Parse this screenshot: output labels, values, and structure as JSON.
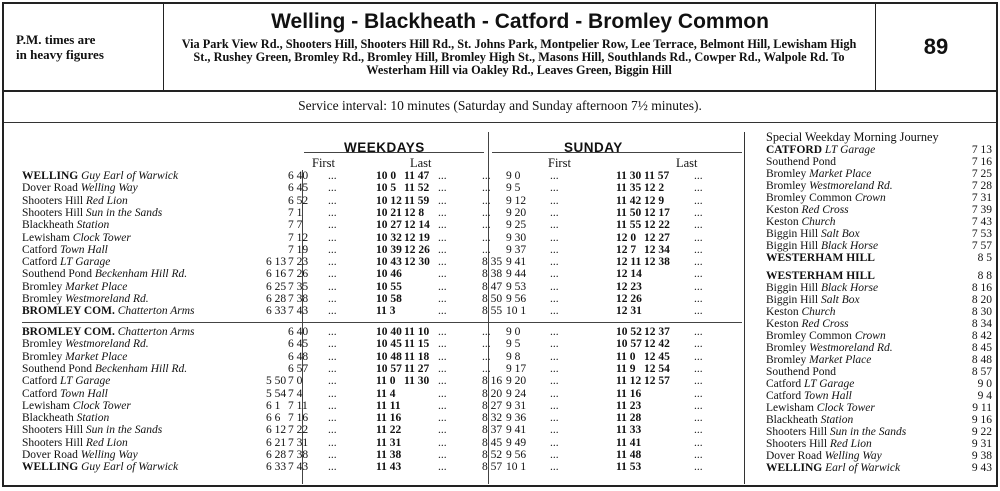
{
  "header": {
    "pm_note_line1": "P.M. times are",
    "pm_note_line2": "in heavy figures",
    "route_title": "Welling - Blackheath - Catford - Bromley Common",
    "route_via": "Via Park View Rd., Shooters Hill, Shooters Hill Rd., St. Johns Park, Montpelier Row, Lee Terrace, Belmont Hill, Lewisham High St., Rushey Green, Bromley Rd., Bromley Hill, Bromley High St., Masons Hill, Southlands Rd., Cowper Rd., Walpole Rd. To Westerham Hill via Oakley Rd., Leaves Green, Biggin Hill",
    "route_number": "89"
  },
  "service_interval": "Service interval: 10 minutes (Saturday and Sunday afternoon 7½ minutes).",
  "weekdays": {
    "label": "WEEKDAYS",
    "first": "First",
    "last": "Last"
  },
  "sunday": {
    "label": "SUNDAY",
    "first": "First",
    "last": "Last"
  },
  "outbound": [
    {
      "stop": "WELLING",
      "detail": "Guy Earl of Warwick",
      "b": true,
      "wd": [
        "",
        "6 40",
        "...",
        "10 0",
        "11 47",
        "..."
      ],
      "su": [
        "...",
        "9 0",
        "...",
        "11 30",
        "11 57",
        "..."
      ]
    },
    {
      "stop": "Dover Road",
      "detail": "Welling Way",
      "b": false,
      "wd": [
        "",
        "6 45",
        "...",
        "10 5",
        "11 52",
        "..."
      ],
      "su": [
        "...",
        "9 5",
        "...",
        "11 35",
        "12 2",
        "..."
      ]
    },
    {
      "stop": "Shooters Hill",
      "detail": "Red Lion",
      "b": false,
      "wd": [
        "",
        "6 52",
        "...",
        "10 12",
        "11 59",
        "..."
      ],
      "su": [
        "...",
        "9 12",
        "...",
        "11 42",
        "12 9",
        "..."
      ]
    },
    {
      "stop": "Shooters Hill",
      "detail": "Sun in the Sands",
      "b": false,
      "wd": [
        "",
        "7 1",
        "...",
        "10 21",
        "12 8",
        "..."
      ],
      "su": [
        "...",
        "9 20",
        "...",
        "11 50",
        "12 17",
        "..."
      ]
    },
    {
      "stop": "Blackheath",
      "detail": "Station",
      "b": false,
      "wd": [
        "",
        "7 7",
        "...",
        "10 27",
        "12 14",
        "..."
      ],
      "su": [
        "...",
        "9 25",
        "...",
        "11 55",
        "12 22",
        "..."
      ]
    },
    {
      "stop": "Lewisham",
      "detail": "Clock Tower",
      "b": false,
      "wd": [
        "",
        "7 12",
        "...",
        "10 32",
        "12 19",
        "..."
      ],
      "su": [
        "...",
        "9 30",
        "...",
        "12 0",
        "12 27",
        "..."
      ]
    },
    {
      "stop": "Catford",
      "detail": "Town Hall",
      "b": false,
      "wd": [
        "",
        "7 19",
        "...",
        "10 39",
        "12 26",
        "..."
      ],
      "su": [
        "...",
        "9 37",
        "...",
        "12 7",
        "12 34",
        "..."
      ]
    },
    {
      "stop": "Catford",
      "detail": "LT Garage",
      "b": false,
      "wd": [
        "6 13",
        "7 23",
        "...",
        "10 43",
        "12 30",
        "..."
      ],
      "su": [
        "8 35",
        "9 41",
        "...",
        "12 11",
        "12 38",
        "..."
      ]
    },
    {
      "stop": "Southend Pond",
      "detail": "Beckenham Hill Rd.",
      "b": false,
      "wd": [
        "6 16",
        "7 26",
        "...",
        "10 46",
        "",
        "..."
      ],
      "su": [
        "8 38",
        "9 44",
        "...",
        "12 14",
        "",
        "..."
      ]
    },
    {
      "stop": "Bromley",
      "detail": "Market Place",
      "b": false,
      "wd": [
        "6 25",
        "7 35",
        "...",
        "10 55",
        "",
        "..."
      ],
      "su": [
        "8 47",
        "9 53",
        "...",
        "12 23",
        "",
        "..."
      ]
    },
    {
      "stop": "Bromley",
      "detail": "Westmoreland Rd.",
      "b": false,
      "wd": [
        "6 28",
        "7 38",
        "...",
        "10 58",
        "",
        "..."
      ],
      "su": [
        "8 50",
        "9 56",
        "...",
        "12 26",
        "",
        "..."
      ]
    },
    {
      "stop": "BROMLEY COM.",
      "detail": "Chatterton Arms",
      "b": true,
      "wd": [
        "6 33",
        "7 43",
        "...",
        "11 3",
        "",
        "..."
      ],
      "su": [
        "8 55",
        "10 1",
        "...",
        "12 31",
        "",
        "..."
      ]
    }
  ],
  "inbound": [
    {
      "stop": "BROMLEY COM.",
      "detail": "Chatterton Arms",
      "b": true,
      "wd": [
        "",
        "6 40",
        "...",
        "10 40",
        "11 10",
        "..."
      ],
      "su": [
        "...",
        "9 0",
        "...",
        "10 52",
        "12 37",
        "..."
      ]
    },
    {
      "stop": "Bromley",
      "detail": "Westmoreland Rd.",
      "b": false,
      "wd": [
        "",
        "6 45",
        "...",
        "10 45",
        "11 15",
        "..."
      ],
      "su": [
        "...",
        "9 5",
        "...",
        "10 57",
        "12 42",
        "..."
      ]
    },
    {
      "stop": "Bromley",
      "detail": "Market Place",
      "b": false,
      "wd": [
        "",
        "6 48",
        "...",
        "10 48",
        "11 18",
        "..."
      ],
      "su": [
        "...",
        "9 8",
        "...",
        "11 0",
        "12 45",
        "..."
      ]
    },
    {
      "stop": "Southend Pond",
      "detail": "Beckenham Hill Rd.",
      "b": false,
      "wd": [
        "",
        "6 57",
        "...",
        "10 57",
        "11 27",
        "..."
      ],
      "su": [
        "...",
        "9 17",
        "...",
        "11 9",
        "12 54",
        "..."
      ]
    },
    {
      "stop": "Catford",
      "detail": "LT Garage",
      "b": false,
      "wd": [
        "5 50",
        "7 0",
        "...",
        "11 0",
        "11 30",
        "..."
      ],
      "su": [
        "8 16",
        "9 20",
        "...",
        "11 12",
        "12 57",
        "..."
      ]
    },
    {
      "stop": "Catford",
      "detail": "Town Hall",
      "b": false,
      "wd": [
        "5 54",
        "7 4",
        "...",
        "11 4",
        "",
        "..."
      ],
      "su": [
        "8 20",
        "9 24",
        "...",
        "11 16",
        "",
        "..."
      ]
    },
    {
      "stop": "Lewisham",
      "detail": "Clock Tower",
      "b": false,
      "wd": [
        "6 1",
        "7 11",
        "...",
        "11 11",
        "",
        "..."
      ],
      "su": [
        "8 27",
        "9 31",
        "...",
        "11 23",
        "",
        "..."
      ]
    },
    {
      "stop": "Blackheath",
      "detail": "Station",
      "b": false,
      "wd": [
        "6 6",
        "7 16",
        "...",
        "11 16",
        "",
        "..."
      ],
      "su": [
        "8 32",
        "9 36",
        "...",
        "11 28",
        "",
        "..."
      ]
    },
    {
      "stop": "Shooters Hill",
      "detail": "Sun in the Sands",
      "b": false,
      "wd": [
        "6 12",
        "7 22",
        "...",
        "11 22",
        "",
        "..."
      ],
      "su": [
        "8 37",
        "9 41",
        "...",
        "11 33",
        "",
        "..."
      ]
    },
    {
      "stop": "Shooters Hill",
      "detail": "Red Lion",
      "b": false,
      "wd": [
        "6 21",
        "7 31",
        "...",
        "11 31",
        "",
        "..."
      ],
      "su": [
        "8 45",
        "9 49",
        "...",
        "11 41",
        "",
        "..."
      ]
    },
    {
      "stop": "Dover Road",
      "detail": "Welling Way",
      "b": false,
      "wd": [
        "6 28",
        "7 38",
        "...",
        "11 38",
        "",
        "..."
      ],
      "su": [
        "8 52",
        "9 56",
        "...",
        "11 48",
        "",
        "..."
      ]
    },
    {
      "stop": "WELLING",
      "detail": "Guy Earl of Warwick",
      "b": true,
      "wd": [
        "6 33",
        "7 43",
        "...",
        "11 43",
        "",
        "..."
      ],
      "su": [
        "8 57",
        "10 1",
        "...",
        "11 53",
        "",
        "..."
      ]
    }
  ],
  "special": {
    "title": "Special Weekday Morning Journey",
    "rows": [
      {
        "stop": "CATFORD",
        "detail": "LT Garage",
        "b": true,
        "time": "7 13"
      },
      {
        "stop": "Southend Pond",
        "detail": "",
        "b": false,
        "time": "7 16"
      },
      {
        "stop": "Bromley",
        "detail": "Market Place",
        "b": false,
        "time": "7 25"
      },
      {
        "stop": "Bromley",
        "detail": "Westmoreland Rd.",
        "b": false,
        "time": "7 28"
      },
      {
        "stop": "Bromley Common",
        "detail": "Crown",
        "b": false,
        "time": "7 31"
      },
      {
        "stop": "Keston",
        "detail": "Red Cross",
        "b": false,
        "time": "7 39"
      },
      {
        "stop": "Keston",
        "detail": "Church",
        "b": false,
        "time": "7 43"
      },
      {
        "stop": "Biggin Hill",
        "detail": "Salt Box",
        "b": false,
        "time": "7 53"
      },
      {
        "stop": "Biggin Hill",
        "detail": "Black Horse",
        "b": false,
        "time": "7 57"
      },
      {
        "stop": "WESTERHAM HILL",
        "detail": "",
        "b": true,
        "time": "8 5"
      },
      {
        "stop": "WESTERHAM HILL",
        "detail": "",
        "b": true,
        "time": "8 8"
      },
      {
        "stop": "Biggin Hill",
        "detail": "Black Horse",
        "b": false,
        "time": "8 16"
      },
      {
        "stop": "Biggin Hill",
        "detail": "Salt Box",
        "b": false,
        "time": "8 20"
      },
      {
        "stop": "Keston",
        "detail": "Church",
        "b": false,
        "time": "8 30"
      },
      {
        "stop": "Keston",
        "detail": "Red Cross",
        "b": false,
        "time": "8 34"
      },
      {
        "stop": "Bromley Common",
        "detail": "Crown",
        "b": false,
        "time": "8 42"
      },
      {
        "stop": "Bromley",
        "detail": "Westmoreland Rd.",
        "b": false,
        "time": "8 45"
      },
      {
        "stop": "Bromley",
        "detail": "Market Place",
        "b": false,
        "time": "8 48"
      },
      {
        "stop": "Southend Pond",
        "detail": "",
        "b": false,
        "time": "8 57"
      },
      {
        "stop": "Catford",
        "detail": "LT Garage",
        "b": false,
        "time": "9 0"
      },
      {
        "stop": "Catford",
        "detail": "Town Hall",
        "b": false,
        "time": "9 4"
      },
      {
        "stop": "Lewisham",
        "detail": "Clock Tower",
        "b": false,
        "time": "9 11"
      },
      {
        "stop": "Blackheath",
        "detail": "Station",
        "b": false,
        "time": "9 16"
      },
      {
        "stop": "Shooters Hill",
        "detail": "Sun in the Sands",
        "b": false,
        "time": "9 22"
      },
      {
        "stop": "Shooters Hill",
        "detail": "Red Lion",
        "b": false,
        "time": "9 31"
      },
      {
        "stop": "Dover Road",
        "detail": "Welling Way",
        "b": false,
        "time": "9 38"
      },
      {
        "stop": "WELLING",
        "detail": "Earl of Warwick",
        "b": true,
        "time": "9 43"
      }
    ]
  }
}
